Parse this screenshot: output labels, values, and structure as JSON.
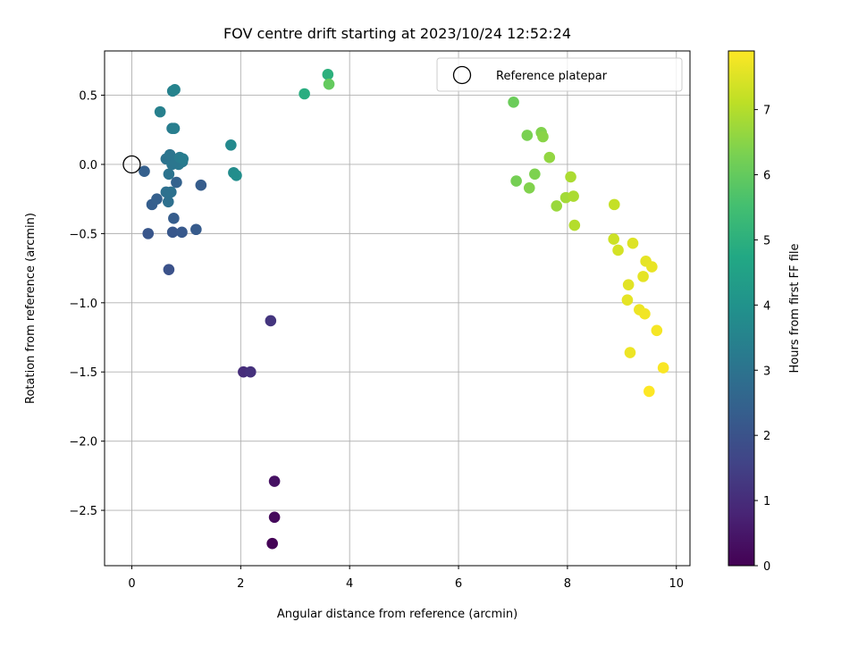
{
  "chart_data": {
    "type": "scatter",
    "title": "FOV centre drift starting at 2023/10/24 12:52:24",
    "xlabel": "Angular distance from reference (arcmin)",
    "ylabel": "Rotation from reference (arcmin)",
    "xlim": [
      -0.5,
      10.25
    ],
    "ylim": [
      -2.9,
      0.82
    ],
    "xticks": [
      0,
      2,
      4,
      6,
      8,
      10
    ],
    "xtick_labels": [
      "0",
      "2",
      "4",
      "6",
      "8",
      "10"
    ],
    "yticks": [
      -2.5,
      -2.0,
      -1.5,
      -1.0,
      -0.5,
      0.0,
      0.5
    ],
    "ytick_labels": [
      "−2.5",
      "−2.0",
      "−1.5",
      "−1.0",
      "−0.5",
      "0.0",
      "0.5"
    ],
    "grid": true,
    "legend": {
      "position": "upper right",
      "entries": [
        {
          "label": "Reference platepar",
          "marker": "open-circle",
          "x": 0,
          "y": 0
        }
      ]
    },
    "colorbar": {
      "label": "Hours from first FF file",
      "colormap": "viridis",
      "range": [
        0,
        7.9
      ],
      "ticks": [
        0,
        1,
        2,
        3,
        4,
        5,
        6,
        7
      ],
      "tick_labels": [
        "0",
        "1",
        "2",
        "3",
        "4",
        "5",
        "6",
        "7"
      ]
    },
    "points": [
      {
        "x": 2.58,
        "y": -2.74,
        "hours": 0.05
      },
      {
        "x": 2.62,
        "y": -2.55,
        "hours": 0.2
      },
      {
        "x": 2.62,
        "y": -2.29,
        "hours": 0.35
      },
      {
        "x": 2.05,
        "y": -1.5,
        "hours": 1.0
      },
      {
        "x": 2.18,
        "y": -1.5,
        "hours": 1.1
      },
      {
        "x": 2.55,
        "y": -1.13,
        "hours": 1.2
      },
      {
        "x": 0.68,
        "y": -0.76,
        "hours": 2.0
      },
      {
        "x": 0.3,
        "y": -0.5,
        "hours": 2.1
      },
      {
        "x": 0.75,
        "y": -0.49,
        "hours": 2.15
      },
      {
        "x": 0.92,
        "y": -0.49,
        "hours": 2.2
      },
      {
        "x": 1.18,
        "y": -0.47,
        "hours": 2.25
      },
      {
        "x": 0.77,
        "y": -0.39,
        "hours": 2.3
      },
      {
        "x": 0.37,
        "y": -0.29,
        "hours": 2.35
      },
      {
        "x": 0.46,
        "y": -0.25,
        "hours": 2.4
      },
      {
        "x": 1.27,
        "y": -0.15,
        "hours": 2.3
      },
      {
        "x": 0.82,
        "y": -0.13,
        "hours": 2.45
      },
      {
        "x": 0.23,
        "y": -0.05,
        "hours": 2.4
      },
      {
        "x": 0.67,
        "y": -0.27,
        "hours": 2.9
      },
      {
        "x": 0.63,
        "y": -0.2,
        "hours": 2.9
      },
      {
        "x": 0.72,
        "y": -0.2,
        "hours": 2.95
      },
      {
        "x": 0.68,
        "y": -0.07,
        "hours": 3.0
      },
      {
        "x": 0.63,
        "y": 0.04,
        "hours": 3.0
      },
      {
        "x": 0.7,
        "y": 0.07,
        "hours": 3.05
      },
      {
        "x": 0.74,
        "y": 0.0,
        "hours": 3.05
      },
      {
        "x": 0.86,
        "y": 0.0,
        "hours": 3.15
      },
      {
        "x": 0.93,
        "y": 0.02,
        "hours": 3.2
      },
      {
        "x": 0.8,
        "y": 0.02,
        "hours": 3.1
      },
      {
        "x": 0.88,
        "y": 0.05,
        "hours": 3.25
      },
      {
        "x": 0.94,
        "y": 0.04,
        "hours": 3.3
      },
      {
        "x": 0.74,
        "y": 0.26,
        "hours": 3.3
      },
      {
        "x": 0.78,
        "y": 0.26,
        "hours": 3.35
      },
      {
        "x": 0.52,
        "y": 0.38,
        "hours": 3.4
      },
      {
        "x": 0.75,
        "y": 0.53,
        "hours": 3.45
      },
      {
        "x": 0.79,
        "y": 0.54,
        "hours": 3.5
      },
      {
        "x": 1.82,
        "y": 0.14,
        "hours": 3.7
      },
      {
        "x": 1.87,
        "y": -0.06,
        "hours": 3.8
      },
      {
        "x": 1.92,
        "y": -0.08,
        "hours": 3.85
      },
      {
        "x": 3.17,
        "y": 0.51,
        "hours": 4.9
      },
      {
        "x": 3.6,
        "y": 0.65,
        "hours": 5.0
      },
      {
        "x": 3.62,
        "y": 0.58,
        "hours": 6.0
      },
      {
        "x": 7.01,
        "y": 0.45,
        "hours": 6.1
      },
      {
        "x": 7.26,
        "y": 0.21,
        "hours": 6.3
      },
      {
        "x": 7.52,
        "y": 0.23,
        "hours": 6.4
      },
      {
        "x": 7.55,
        "y": 0.2,
        "hours": 6.5
      },
      {
        "x": 7.67,
        "y": 0.05,
        "hours": 6.6
      },
      {
        "x": 7.4,
        "y": -0.07,
        "hours": 6.35
      },
      {
        "x": 7.06,
        "y": -0.12,
        "hours": 6.25
      },
      {
        "x": 7.3,
        "y": -0.17,
        "hours": 6.4
      },
      {
        "x": 8.06,
        "y": -0.09,
        "hours": 6.9
      },
      {
        "x": 7.97,
        "y": -0.24,
        "hours": 6.8
      },
      {
        "x": 8.11,
        "y": -0.23,
        "hours": 6.9
      },
      {
        "x": 7.8,
        "y": -0.3,
        "hours": 6.7
      },
      {
        "x": 8.13,
        "y": -0.44,
        "hours": 7.0
      },
      {
        "x": 8.86,
        "y": -0.29,
        "hours": 7.2
      },
      {
        "x": 8.85,
        "y": -0.54,
        "hours": 7.3
      },
      {
        "x": 8.93,
        "y": -0.62,
        "hours": 7.4
      },
      {
        "x": 9.2,
        "y": -0.57,
        "hours": 7.5
      },
      {
        "x": 9.44,
        "y": -0.7,
        "hours": 7.6
      },
      {
        "x": 9.55,
        "y": -0.74,
        "hours": 7.65
      },
      {
        "x": 9.39,
        "y": -0.81,
        "hours": 7.6
      },
      {
        "x": 9.12,
        "y": -0.87,
        "hours": 7.55
      },
      {
        "x": 9.1,
        "y": -0.98,
        "hours": 7.6
      },
      {
        "x": 9.32,
        "y": -1.05,
        "hours": 7.7
      },
      {
        "x": 9.42,
        "y": -1.08,
        "hours": 7.75
      },
      {
        "x": 9.64,
        "y": -1.2,
        "hours": 7.8
      },
      {
        "x": 9.15,
        "y": -1.36,
        "hours": 7.7
      },
      {
        "x": 9.76,
        "y": -1.47,
        "hours": 7.85
      },
      {
        "x": 9.5,
        "y": -1.64,
        "hours": 7.9
      }
    ]
  }
}
